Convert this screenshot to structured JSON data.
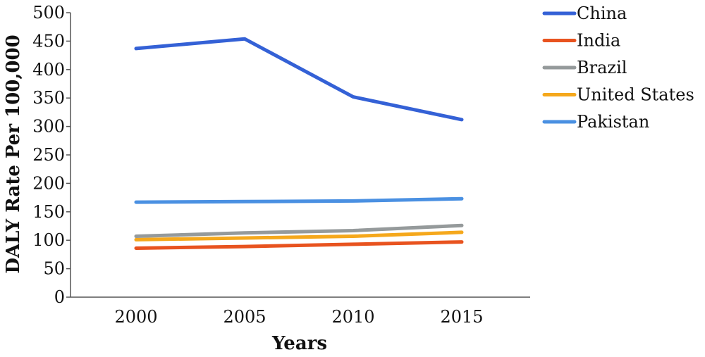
{
  "chart_data": {
    "type": "line",
    "title": "",
    "xlabel": "Years",
    "ylabel": "DALY Rate Per 100,000",
    "x": [
      2000,
      2005,
      2010,
      2015
    ],
    "x_tick_labels": [
      "2000",
      "2005",
      "2010",
      "2015"
    ],
    "ylim": [
      0,
      500
    ],
    "y_ticks": [
      0,
      50,
      100,
      150,
      200,
      250,
      300,
      350,
      400,
      450,
      500
    ],
    "grid": false,
    "legend_position": "right",
    "series": [
      {
        "name": "China",
        "color": "#3461d6",
        "values": [
          437,
          454,
          352,
          312
        ]
      },
      {
        "name": "India",
        "color": "#e8531f",
        "values": [
          86,
          89,
          93,
          97
        ]
      },
      {
        "name": "Brazil",
        "color": "#959a9b",
        "values": [
          107,
          113,
          117,
          126
        ]
      },
      {
        "name": "United States",
        "color": "#f5a81c",
        "values": [
          101,
          104,
          107,
          114
        ]
      },
      {
        "name": "Pakistan",
        "color": "#4a90e2",
        "values": [
          167,
          168,
          169,
          173
        ]
      }
    ]
  }
}
